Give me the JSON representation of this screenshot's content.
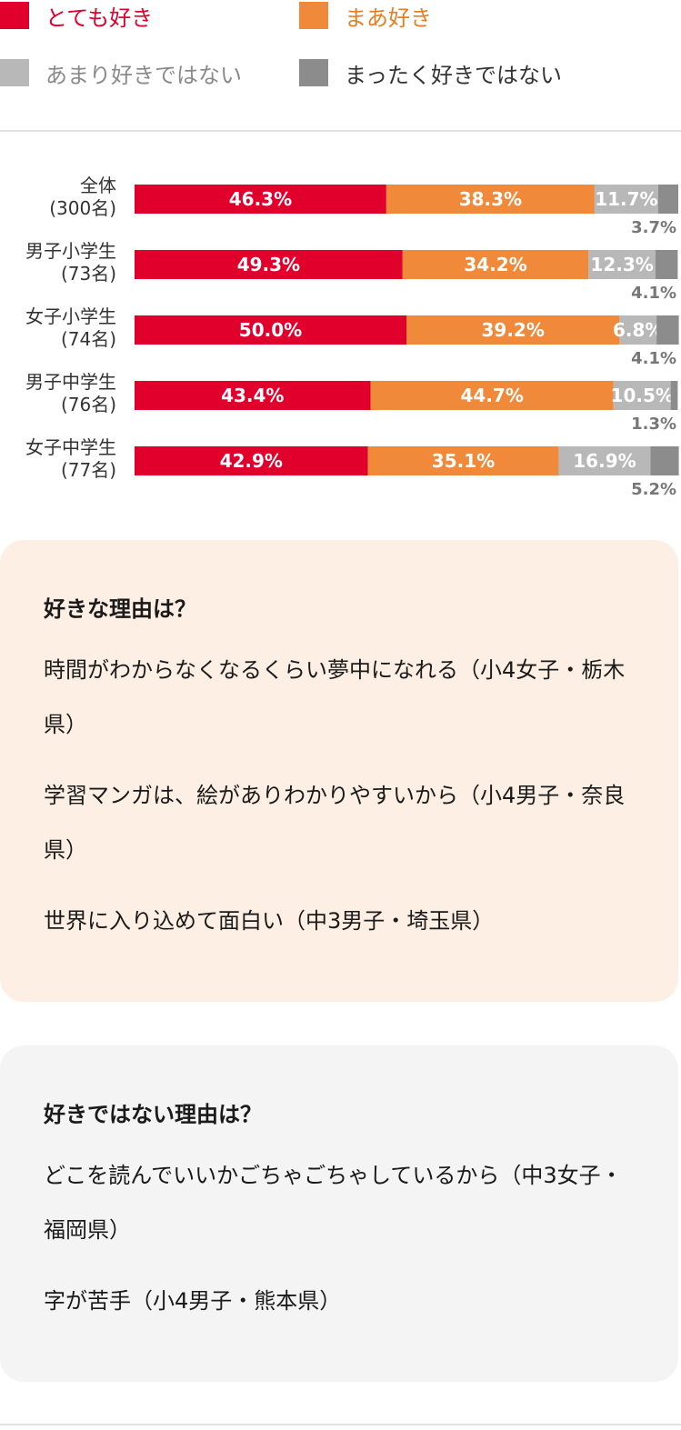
{
  "legend": [
    {
      "label": "とても好き",
      "color": "#e0002b",
      "text_color": "#e0002b"
    },
    {
      "label": "まあ好き",
      "color": "#f08a3a",
      "text_color": "#e67e22"
    },
    {
      "label": "あまり好きではない",
      "color": "#b8b8b8",
      "text_color": "#8a8a8a"
    },
    {
      "label": "まったく好きではない",
      "color": "#8c8c8c",
      "text_color": "#333333"
    }
  ],
  "chart_data": {
    "type": "bar",
    "stacked": true,
    "orientation": "horizontal",
    "unit": "%",
    "categories": [
      {
        "name": "全体",
        "count": "(300名)"
      },
      {
        "name": "男子小学生",
        "count": "(73名)"
      },
      {
        "name": "女子小学生",
        "count": "(74名)"
      },
      {
        "name": "男子中学生",
        "count": "(76名)"
      },
      {
        "name": "女子中学生",
        "count": "(77名)"
      }
    ],
    "series": [
      {
        "name": "とても好き",
        "color": "#e0002b",
        "values": [
          46.3,
          49.3,
          50.0,
          43.4,
          42.9
        ],
        "labels": [
          "46.3%",
          "49.3%",
          "50.0%",
          "43.4%",
          "42.9%"
        ]
      },
      {
        "name": "まあ好き",
        "color": "#f08a3a",
        "values": [
          38.3,
          34.2,
          39.2,
          44.7,
          35.1
        ],
        "labels": [
          "38.3%",
          "34.2%",
          "39.2%",
          "44.7%",
          "35.1%"
        ]
      },
      {
        "name": "あまり好きではない",
        "color": "#b8b8b8",
        "values": [
          11.7,
          12.3,
          6.8,
          10.5,
          16.9
        ],
        "labels": [
          "11.7%",
          "12.3%",
          "6.8%",
          "10.5%",
          "16.9%"
        ]
      },
      {
        "name": "まったく好きではない",
        "color": "#8c8c8c",
        "values": [
          3.7,
          4.1,
          4.1,
          1.3,
          5.2
        ],
        "labels": [
          "3.7%",
          "4.1%",
          "4.1%",
          "1.3%",
          "5.2%"
        ]
      }
    ],
    "xlim": [
      0,
      100
    ],
    "legend_position": "top"
  },
  "like_reasons": {
    "title": "好きな理由は？",
    "items": [
      "時間がわからなくなるくらい夢中になれる（小4女子・栃木県）",
      "学習マンガは、絵がありわかりやすいから（小4男子・奈良県）",
      "世界に入り込めて面白い（中3男子・埼玉県）"
    ]
  },
  "dislike_reasons": {
    "title": "好きではない理由は？",
    "items": [
      "どこを読んでいいかごちゃごちゃしているから（中3女子・福岡県）",
      "字が苦手（小4男子・熊本県）"
    ]
  }
}
